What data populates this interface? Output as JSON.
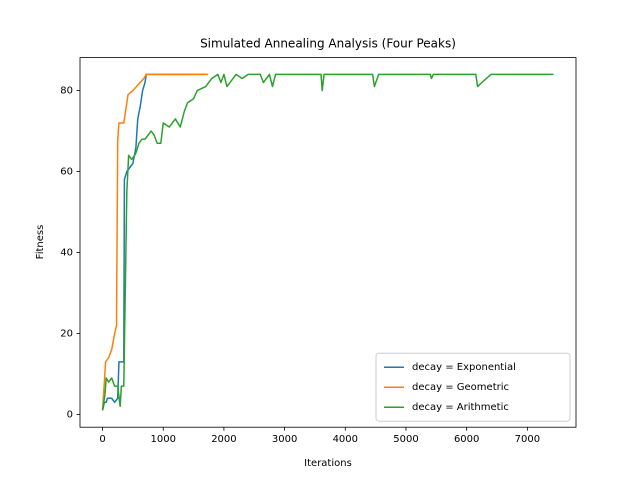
{
  "chart_data": {
    "type": "line",
    "title": "Simulated Annealing Analysis (Four Peaks)",
    "x_label": "Iterations",
    "y_label": "Fitness",
    "xlim": [
      -371.5,
      7801.5
    ],
    "ylim": [
      -3.15,
      88.15
    ],
    "xticks": [
      0,
      1000,
      2000,
      3000,
      4000,
      5000,
      6000,
      7000
    ],
    "yticks": [
      0,
      20,
      40,
      60,
      80
    ],
    "grid": false,
    "legend": "lower right",
    "series": [
      {
        "name": "decay = Exponential",
        "color": "#1f77b4",
        "x": [
          0,
          30,
          60,
          80,
          150,
          200,
          250,
          270,
          350,
          360,
          400,
          450,
          500,
          550,
          580,
          620,
          660,
          700,
          720,
          1700
        ],
        "values": [
          1,
          3,
          3,
          4,
          4,
          3,
          4,
          13,
          13,
          58,
          60,
          61,
          62,
          66,
          73,
          76,
          80,
          82,
          84,
          84
        ]
      },
      {
        "name": "decay = Geometric",
        "color": "#ff7f0e",
        "x": [
          0,
          30,
          50,
          100,
          150,
          200,
          230,
          250,
          270,
          350,
          380,
          420,
          500,
          560,
          620,
          680,
          720,
          1740
        ],
        "values": [
          1,
          8,
          13,
          14,
          16,
          20,
          22,
          68,
          72,
          72,
          75,
          79,
          80,
          81,
          82,
          83,
          84,
          84
        ]
      },
      {
        "name": "decay = Arithmetic",
        "color": "#2ca02c",
        "x": [
          0,
          40,
          60,
          100,
          150,
          200,
          250,
          290,
          310,
          350,
          400,
          430,
          480,
          530,
          560,
          600,
          650,
          700,
          750,
          800,
          850,
          900,
          960,
          1000,
          1100,
          1150,
          1200,
          1280,
          1350,
          1400,
          1500,
          1560,
          1700,
          1800,
          1900,
          1950,
          2000,
          2050,
          2200,
          2300,
          2400,
          2600,
          2650,
          2750,
          2800,
          2850,
          3600,
          3620,
          3650,
          4450,
          4480,
          4550,
          5400,
          5420,
          5450,
          6150,
          6180,
          6250,
          6400,
          7430
        ],
        "values": [
          1,
          5,
          9,
          8,
          9,
          7,
          7,
          2,
          7,
          7,
          55,
          64,
          63,
          64,
          65,
          67,
          68,
          68,
          69,
          70,
          69,
          67,
          67,
          72,
          71,
          72,
          73,
          71,
          75,
          77,
          78,
          80,
          81,
          83,
          84,
          82,
          84,
          81,
          84,
          83,
          84,
          84,
          82,
          84,
          81,
          84,
          84,
          80,
          84,
          84,
          81,
          84,
          84,
          83,
          84,
          84,
          81,
          82,
          84,
          84
        ]
      }
    ]
  }
}
